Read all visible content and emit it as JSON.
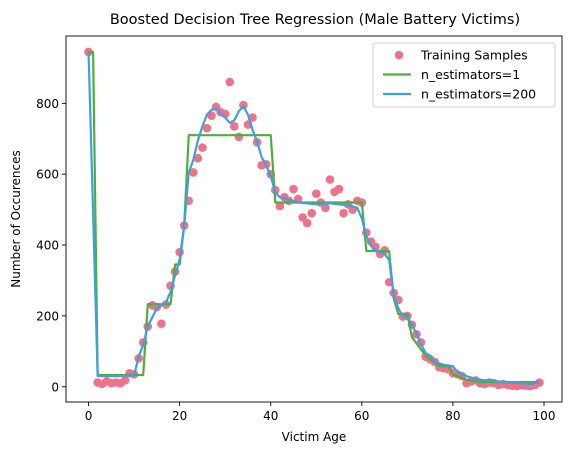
{
  "chart_data": {
    "type": "scatter+line",
    "title": "Boosted Decision Tree Regression (Male Battery Victims)",
    "xlabel": "Victim Age",
    "ylabel": "Number of Occurences",
    "xlim": [
      -4.95,
      103.95
    ],
    "ylim": [
      -43,
      990
    ],
    "xticks": [
      0,
      20,
      40,
      60,
      80,
      100
    ],
    "yticks": [
      0,
      200,
      400,
      600,
      800
    ],
    "grid": false,
    "legend_position": "upper right",
    "legend": [
      "Training Samples",
      "n_estimators=1",
      "n_estimators=200"
    ],
    "colors": {
      "samples": "#f0728a",
      "n_estimators_1": "#4daf3a",
      "n_estimators_200": "#3ea0e0"
    },
    "series": [
      {
        "name": "Training Samples",
        "kind": "scatter",
        "points": [
          [
            0,
            945
          ],
          [
            2,
            12
          ],
          [
            3,
            8
          ],
          [
            4,
            15
          ],
          [
            5,
            10
          ],
          [
            6,
            12
          ],
          [
            7,
            10
          ],
          [
            8,
            18
          ],
          [
            9,
            38
          ],
          [
            10,
            35
          ],
          [
            11,
            80
          ],
          [
            12,
            125
          ],
          [
            13,
            170
          ],
          [
            14,
            230
          ],
          [
            15,
            225
          ],
          [
            16,
            178
          ],
          [
            17,
            232
          ],
          [
            18,
            285
          ],
          [
            19,
            325
          ],
          [
            20,
            380
          ],
          [
            21,
            455
          ],
          [
            22,
            525
          ],
          [
            23,
            605
          ],
          [
            24,
            645
          ],
          [
            25,
            675
          ],
          [
            26,
            730
          ],
          [
            27,
            765
          ],
          [
            28,
            790
          ],
          [
            29,
            775
          ],
          [
            30,
            770
          ],
          [
            31,
            860
          ],
          [
            32,
            735
          ],
          [
            33,
            705
          ],
          [
            34,
            795
          ],
          [
            35,
            740
          ],
          [
            36,
            760
          ],
          [
            37,
            690
          ],
          [
            38,
            625
          ],
          [
            39,
            628
          ],
          [
            40,
            600
          ],
          [
            41,
            555
          ],
          [
            42,
            510
          ],
          [
            43,
            535
          ],
          [
            44,
            525
          ],
          [
            45,
            558
          ],
          [
            46,
            530
          ],
          [
            47,
            478
          ],
          [
            48,
            462
          ],
          [
            49,
            490
          ],
          [
            50,
            545
          ],
          [
            51,
            520
          ],
          [
            52,
            505
          ],
          [
            53,
            585
          ],
          [
            54,
            550
          ],
          [
            55,
            558
          ],
          [
            56,
            490
          ],
          [
            57,
            515
          ],
          [
            58,
            500
          ],
          [
            59,
            525
          ],
          [
            60,
            520
          ],
          [
            61,
            435
          ],
          [
            62,
            410
          ],
          [
            63,
            395
          ],
          [
            64,
            375
          ],
          [
            65,
            385
          ],
          [
            66,
            295
          ],
          [
            67,
            265
          ],
          [
            68,
            245
          ],
          [
            69,
            198
          ],
          [
            70,
            200
          ],
          [
            71,
            175
          ],
          [
            72,
            148
          ],
          [
            73,
            125
          ],
          [
            74,
            85
          ],
          [
            75,
            78
          ],
          [
            76,
            70
          ],
          [
            77,
            55
          ],
          [
            78,
            52
          ],
          [
            79,
            50
          ],
          [
            80,
            38
          ],
          [
            81,
            35
          ],
          [
            82,
            30
          ],
          [
            83,
            10
          ],
          [
            84,
            15
          ],
          [
            85,
            18
          ],
          [
            86,
            10
          ],
          [
            87,
            8
          ],
          [
            88,
            12
          ],
          [
            89,
            10
          ],
          [
            90,
            5
          ],
          [
            91,
            8
          ],
          [
            92,
            5
          ],
          [
            93,
            3
          ],
          [
            94,
            2
          ],
          [
            95,
            5
          ],
          [
            96,
            3
          ],
          [
            97,
            2
          ],
          [
            98,
            5
          ],
          [
            99,
            12
          ]
        ]
      },
      {
        "name": "n_estimators=1",
        "kind": "line",
        "points": [
          [
            0,
            945
          ],
          [
            1,
            945
          ],
          [
            2,
            33
          ],
          [
            12,
            33
          ],
          [
            13,
            233
          ],
          [
            18,
            233
          ],
          [
            19,
            345
          ],
          [
            20,
            345
          ],
          [
            21,
            455
          ],
          [
            22,
            710
          ],
          [
            40,
            710
          ],
          [
            41,
            520
          ],
          [
            59,
            520
          ],
          [
            60,
            520
          ],
          [
            61,
            383
          ],
          [
            66,
            383
          ],
          [
            67,
            250
          ],
          [
            68,
            205
          ],
          [
            70,
            205
          ],
          [
            71,
            140
          ],
          [
            74,
            88
          ],
          [
            77,
            58
          ],
          [
            79,
            58
          ],
          [
            80,
            35
          ],
          [
            83,
            20
          ],
          [
            86,
            13
          ],
          [
            90,
            13
          ],
          [
            99,
            13
          ]
        ]
      },
      {
        "name": "n_estimators=200",
        "kind": "line",
        "points": [
          [
            0,
            945
          ],
          [
            1,
            490
          ],
          [
            2,
            30
          ],
          [
            6,
            30
          ],
          [
            10,
            32
          ],
          [
            11,
            85
          ],
          [
            12,
            118
          ],
          [
            13,
            170
          ],
          [
            15,
            222
          ],
          [
            17,
            238
          ],
          [
            18,
            268
          ],
          [
            19,
            315
          ],
          [
            20,
            360
          ],
          [
            21,
            455
          ],
          [
            22,
            605
          ],
          [
            23,
            640
          ],
          [
            24,
            695
          ],
          [
            25,
            735
          ],
          [
            26,
            768
          ],
          [
            27,
            782
          ],
          [
            28,
            785
          ],
          [
            29,
            772
          ],
          [
            30,
            760
          ],
          [
            31,
            745
          ],
          [
            32,
            752
          ],
          [
            33,
            778
          ],
          [
            34,
            792
          ],
          [
            35,
            768
          ],
          [
            36,
            725
          ],
          [
            37,
            692
          ],
          [
            38,
            648
          ],
          [
            39,
            625
          ],
          [
            40,
            595
          ],
          [
            41,
            548
          ],
          [
            42,
            535
          ],
          [
            44,
            528
          ],
          [
            46,
            520
          ],
          [
            50,
            515
          ],
          [
            53,
            518
          ],
          [
            57,
            512
          ],
          [
            59,
            505
          ],
          [
            60,
            475
          ],
          [
            61,
            425
          ],
          [
            62,
            398
          ],
          [
            63,
            385
          ],
          [
            64,
            380
          ],
          [
            65,
            375
          ],
          [
            66,
            358
          ],
          [
            67,
            258
          ],
          [
            68,
            222
          ],
          [
            69,
            198
          ],
          [
            70,
            196
          ],
          [
            71,
            175
          ],
          [
            72,
            150
          ],
          [
            73,
            120
          ],
          [
            74,
            95
          ],
          [
            75,
            88
          ],
          [
            76,
            70
          ],
          [
            78,
            62
          ],
          [
            80,
            58
          ],
          [
            81,
            42
          ],
          [
            82,
            36
          ],
          [
            83,
            30
          ],
          [
            85,
            22
          ],
          [
            87,
            18
          ],
          [
            88,
            20
          ],
          [
            90,
            15
          ],
          [
            93,
            12
          ],
          [
            95,
            10
          ],
          [
            97,
            8
          ],
          [
            99,
            12
          ]
        ]
      }
    ]
  }
}
